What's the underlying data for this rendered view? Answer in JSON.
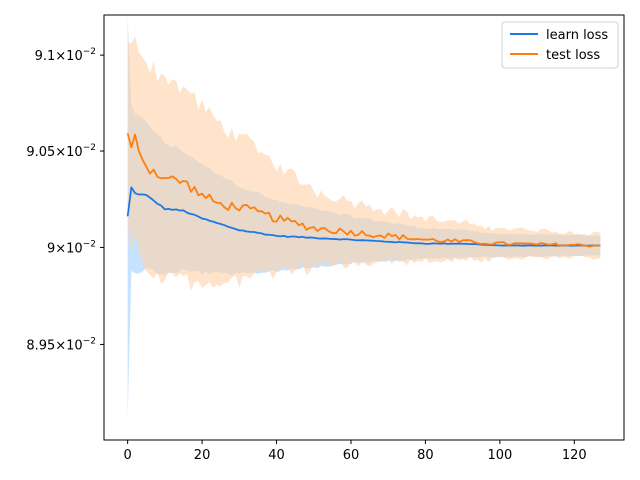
{
  "chart_data": {
    "type": "line",
    "title": "",
    "xlabel": "",
    "ylabel": "",
    "xlim": [
      -6.35,
      133.35
    ],
    "ylim": [
      0.08901,
      0.09121
    ],
    "x_ticks": [
      0,
      20,
      40,
      60,
      80,
      100,
      120
    ],
    "x_tick_labels": [
      "0",
      "20",
      "40",
      "60",
      "80",
      "100",
      "120"
    ],
    "y_ticks": [
      0.0895,
      0.09,
      0.0905,
      0.091
    ],
    "y_tick_labels": [
      {
        "mant": "8.95",
        "exp": "−2"
      },
      {
        "mant": "9",
        "exp": "−2"
      },
      {
        "mant": "9.05",
        "exp": "−2"
      },
      {
        "mant": "9.1",
        "exp": "−2"
      }
    ],
    "y_tick_prefix": "×",
    "y_tick_base": "10",
    "y_scale": "log",
    "grid": false,
    "legend_position": "top-right",
    "x_count": 128,
    "series": [
      {
        "name": "learn loss",
        "color": "#1f77e4",
        "band_color": "#9fd0ff",
        "anchors": [
          [
            0,
            0.09016
          ],
          [
            1,
            0.09031
          ],
          [
            2,
            0.09028
          ],
          [
            5,
            0.09027
          ],
          [
            10,
            0.0902
          ],
          [
            15,
            0.09019
          ],
          [
            20,
            0.09015
          ],
          [
            25,
            0.09012
          ],
          [
            30,
            0.09009
          ],
          [
            40,
            0.09006
          ],
          [
            50,
            0.09005
          ],
          [
            60,
            0.09004
          ],
          [
            70,
            0.09003
          ],
          [
            80,
            0.09002
          ],
          [
            90,
            0.09002
          ],
          [
            100,
            0.09001
          ],
          [
            127,
            0.09001
          ]
        ],
        "band_half_anchors": [
          [
            0,
            0.00104
          ],
          [
            1,
            0.00042
          ],
          [
            3,
            0.0004
          ],
          [
            10,
            0.00034
          ],
          [
            20,
            0.00028
          ],
          [
            40,
            0.00018
          ],
          [
            60,
            0.00012
          ],
          [
            80,
            8e-05
          ],
          [
            100,
            6e-05
          ],
          [
            127,
            5e-05
          ]
        ],
        "noise": 4e-06,
        "band_noise": 1.2e-05
      },
      {
        "name": "test loss",
        "color": "#ff7f0e",
        "band_color": "#ffd2a8",
        "anchors": [
          [
            0,
            0.09058
          ],
          [
            1,
            0.0905
          ],
          [
            2,
            0.09057
          ],
          [
            5,
            0.09042
          ],
          [
            10,
            0.09036
          ],
          [
            15,
            0.09034
          ],
          [
            20,
            0.09027
          ],
          [
            25,
            0.09022
          ],
          [
            30,
            0.09021
          ],
          [
            40,
            0.09015
          ],
          [
            50,
            0.0901
          ],
          [
            60,
            0.09008
          ],
          [
            70,
            0.09006
          ],
          [
            80,
            0.09004
          ],
          [
            90,
            0.09003
          ],
          [
            100,
            0.09002
          ],
          [
            127,
            0.09001
          ]
        ],
        "band_half_anchors": [
          [
            0,
            0.0005
          ],
          [
            3,
            0.00055
          ],
          [
            10,
            0.00052
          ],
          [
            20,
            0.00046
          ],
          [
            30,
            0.00037
          ],
          [
            40,
            0.00028
          ],
          [
            50,
            0.0002
          ],
          [
            60,
            0.00016
          ],
          [
            80,
            0.00011
          ],
          [
            100,
            8e-05
          ],
          [
            127,
            6e-05
          ]
        ],
        "noise": 3e-05,
        "band_noise": 4e-05
      }
    ]
  }
}
